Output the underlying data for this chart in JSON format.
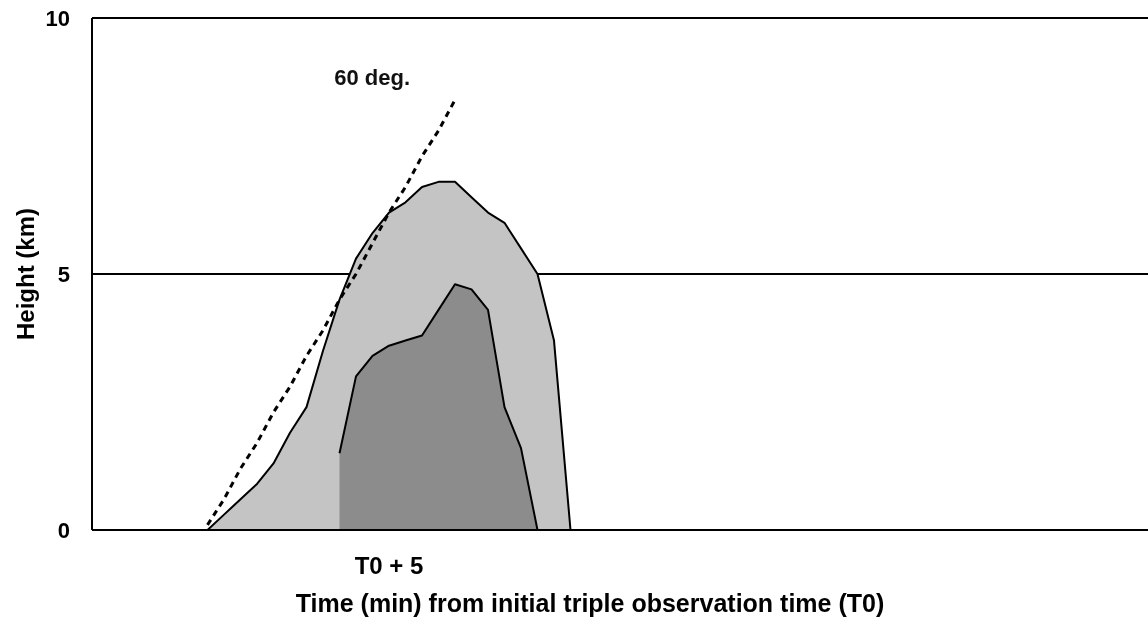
{
  "chart_data": {
    "type": "area",
    "xlabel": "Time (min) from initial triple observation time (T0)",
    "ylabel": "Height (km)",
    "ylim": [
      0,
      10
    ],
    "yticks": [
      0,
      5,
      10
    ],
    "grid": "y",
    "categories": [
      null,
      null,
      null,
      null,
      null,
      null,
      null,
      null,
      null,
      null,
      null,
      null,
      null,
      null,
      null,
      null,
      null,
      null,
      "T0 + 5",
      null,
      null,
      null,
      null,
      null,
      null,
      null,
      null,
      null,
      null,
      null,
      null,
      null,
      null,
      null,
      null,
      null,
      null,
      null,
      null,
      null,
      null,
      null,
      null,
      null,
      null,
      null,
      null,
      null,
      null,
      null,
      null,
      null,
      null,
      null,
      null,
      null,
      null,
      null,
      null,
      null,
      null,
      null,
      null,
      null,
      null
    ],
    "series": [
      {
        "color": "#c4c4c4",
        "values": [
          null,
          null,
          null,
          null,
          null,
          null,
          null,
          0,
          0.3,
          0.6,
          0.9,
          1.3,
          1.9,
          2.4,
          3.5,
          4.5,
          5.3,
          5.8,
          6.2,
          6.4,
          6.7,
          6.8,
          6.8,
          6.5,
          6.2,
          6.0,
          5.5,
          5.0,
          3.7,
          0,
          null,
          null,
          null,
          null,
          null,
          null,
          null,
          null,
          null,
          null,
          null,
          null,
          null,
          null,
          null,
          null,
          null,
          null,
          null,
          null,
          null,
          null,
          null,
          null,
          null,
          null,
          null,
          null,
          null,
          null,
          null,
          null,
          null,
          null,
          null
        ]
      },
      {
        "color": "#8c8c8c",
        "values": [
          null,
          null,
          null,
          null,
          null,
          null,
          null,
          null,
          null,
          null,
          null,
          null,
          null,
          null,
          null,
          1.5,
          3.0,
          3.4,
          3.6,
          3.7,
          3.8,
          4.3,
          4.8,
          4.7,
          4.3,
          2.4,
          1.6,
          0,
          null,
          null,
          null,
          null,
          null,
          null,
          null,
          null,
          null,
          null,
          null,
          null,
          null,
          null,
          null,
          null,
          null,
          null,
          null,
          null,
          null,
          null,
          null,
          null,
          null,
          null,
          null,
          null,
          null,
          null,
          null,
          null,
          null,
          null,
          null,
          null,
          null
        ]
      },
      {
        "type": "line",
        "name": "60 deg.",
        "color": "#000000",
        "line_style": "dashed",
        "values": [
          null,
          null,
          null,
          null,
          null,
          null,
          null,
          0.1,
          0.6,
          1.2,
          1.7,
          2.3,
          2.8,
          3.4,
          3.9,
          4.5,
          5.0,
          5.6,
          6.2,
          6.7,
          7.3,
          7.8,
          8.4,
          null,
          null,
          null,
          null,
          null,
          null,
          null,
          null,
          null,
          null,
          null,
          null,
          null,
          null,
          null,
          null,
          null,
          null,
          null,
          null,
          null,
          null,
          null,
          null,
          null,
          null,
          null,
          null,
          null,
          null,
          null,
          null,
          null,
          null,
          null,
          null,
          null,
          null,
          null,
          null,
          null,
          null
        ]
      }
    ]
  }
}
